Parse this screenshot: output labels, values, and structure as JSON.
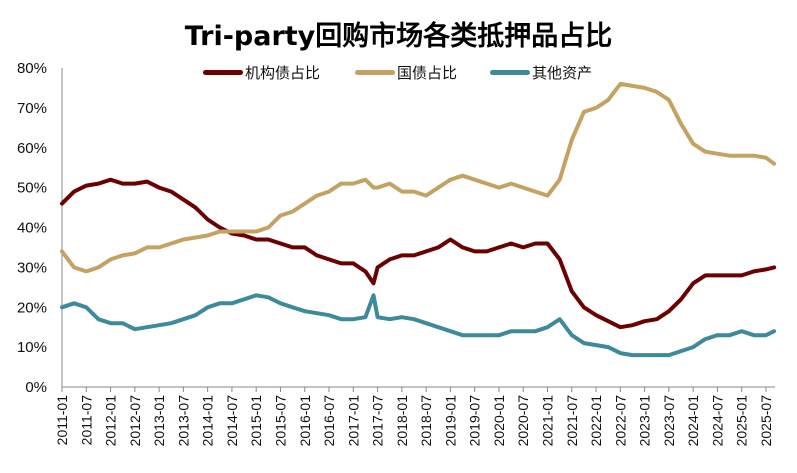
{
  "chart_data": {
    "type": "line",
    "title": "Tri-party回购市场各类抵押品占比",
    "xlabel": "",
    "ylabel": "",
    "ylim": [
      0,
      80
    ],
    "y_ticks": [
      "0%",
      "10%",
      "20%",
      "30%",
      "40%",
      "50%",
      "60%",
      "70%",
      "80%"
    ],
    "x_ticks": [
      "2011-01",
      "2011-07",
      "2012-01",
      "2012-07",
      "2013-01",
      "2013-07",
      "2014-01",
      "2014-07",
      "2015-01",
      "2015-07",
      "2016-01",
      "2016-07",
      "2017-01",
      "2017-07",
      "2018-01",
      "2018-07",
      "2019-01",
      "2019-07",
      "2020-01",
      "2020-07",
      "2021-01",
      "2021-07",
      "2022-01",
      "2022-07",
      "2023-01",
      "2023-07",
      "2024-01",
      "2024-07",
      "2025-01",
      "2025-07"
    ],
    "grid": false,
    "legend_position": "top",
    "x": [
      "2011-01",
      "2011-04",
      "2011-07",
      "2011-10",
      "2012-01",
      "2012-04",
      "2012-07",
      "2012-10",
      "2013-01",
      "2013-04",
      "2013-07",
      "2013-10",
      "2014-01",
      "2014-04",
      "2014-07",
      "2014-10",
      "2015-01",
      "2015-04",
      "2015-07",
      "2015-10",
      "2016-01",
      "2016-04",
      "2016-07",
      "2016-10",
      "2017-01",
      "2017-04",
      "2017-06",
      "2017-07",
      "2017-10",
      "2018-01",
      "2018-04",
      "2018-07",
      "2018-10",
      "2019-01",
      "2019-04",
      "2019-07",
      "2019-10",
      "2020-01",
      "2020-04",
      "2020-07",
      "2020-10",
      "2021-01",
      "2021-04",
      "2021-07",
      "2021-10",
      "2022-01",
      "2022-04",
      "2022-07",
      "2022-10",
      "2023-01",
      "2023-04",
      "2023-07",
      "2023-10",
      "2024-01",
      "2024-04",
      "2024-07",
      "2024-10",
      "2025-01",
      "2025-04",
      "2025-07",
      "2025-09"
    ],
    "series": [
      {
        "name": "机构债占比",
        "color": "#6b0000",
        "values": [
          46,
          49,
          50.5,
          51,
          52,
          51,
          51,
          51.5,
          50,
          49,
          47,
          45,
          42,
          40,
          38.5,
          38,
          37,
          37,
          36,
          35,
          35,
          33,
          32,
          31,
          31,
          29,
          26,
          30,
          32,
          33,
          33,
          34,
          35,
          37,
          35,
          34,
          34,
          35,
          36,
          35,
          36,
          36,
          32,
          24,
          20,
          18,
          16.5,
          15,
          15.5,
          16.5,
          17,
          19,
          22,
          26,
          28,
          28,
          28,
          28,
          29,
          29.5,
          30
        ]
      },
      {
        "name": "国债占比",
        "color": "#c4a262",
        "values": [
          34,
          30,
          29,
          30,
          32,
          33,
          33.5,
          35,
          35,
          36,
          37,
          37.5,
          38,
          39,
          39,
          39,
          39,
          40,
          43,
          44,
          46,
          48,
          49,
          51,
          51,
          52,
          50,
          50,
          51,
          49,
          49,
          48,
          50,
          52,
          53,
          52,
          51,
          50,
          51,
          50,
          49,
          48,
          52,
          62,
          69,
          70,
          72,
          76,
          75.5,
          75,
          74,
          72,
          66,
          61,
          59,
          58.5,
          58,
          58,
          58,
          57.5,
          56
        ]
      },
      {
        "name": "其他资产",
        "color": "#3d8a9c",
        "values": [
          20,
          21,
          20,
          17,
          16,
          16,
          14.5,
          15,
          15.5,
          16,
          17,
          18,
          20,
          21,
          21,
          22,
          23,
          22.5,
          21,
          20,
          19,
          18.5,
          18,
          17,
          17,
          17.5,
          23,
          17.5,
          17,
          17.5,
          17,
          16,
          15,
          14,
          13,
          13,
          13,
          13,
          14,
          14,
          14,
          15,
          17,
          13,
          11,
          10.5,
          10,
          8.5,
          8,
          8,
          8,
          8,
          9,
          10,
          12,
          13,
          13,
          14,
          13,
          13,
          14
        ]
      }
    ]
  }
}
